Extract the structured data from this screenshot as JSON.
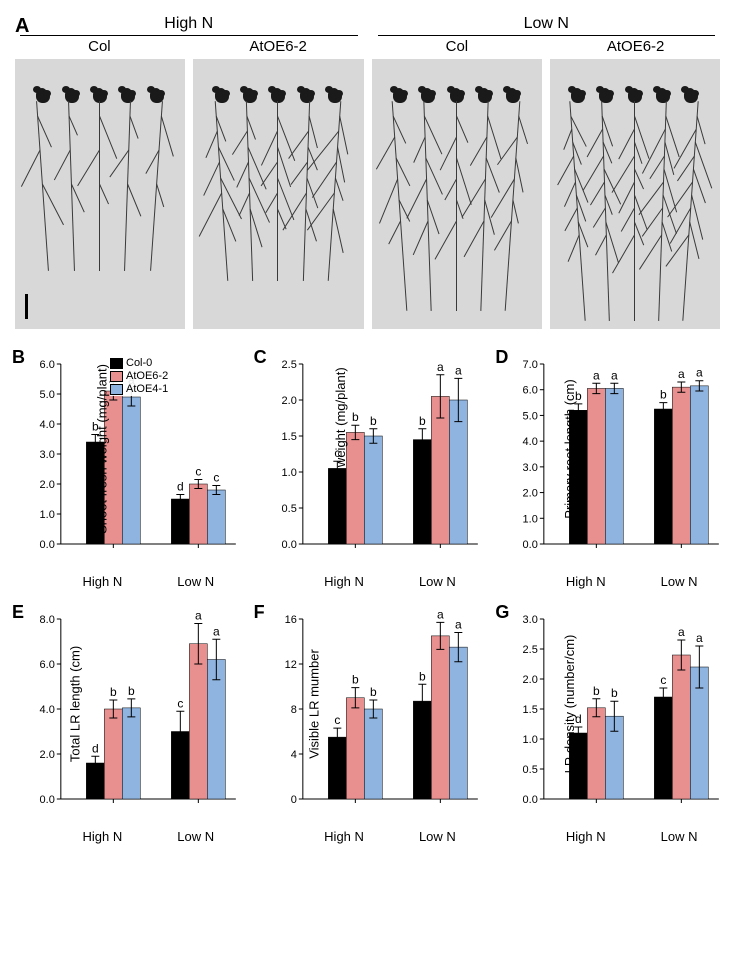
{
  "panelA": {
    "label": "A",
    "conditions": [
      "High N",
      "Low N"
    ],
    "genotypes": [
      "Col",
      "AtOE6-2",
      "Col",
      "AtOE6-2"
    ]
  },
  "legend": {
    "items": [
      {
        "label": "Col-0",
        "color": "#000000"
      },
      {
        "label": "AtOE6-2",
        "color": "#e89090"
      },
      {
        "label": "AtOE4-1",
        "color": "#8fb4e0"
      }
    ]
  },
  "x_groups": [
    "High N",
    "Low N"
  ],
  "series_colors": [
    "#000000",
    "#e89090",
    "#8fb4e0"
  ],
  "charts": {
    "B": {
      "ylabel": "Shoot fresh weight (mg/plant)",
      "ymax": 6.0,
      "ytick": 1.0,
      "decimals": 1,
      "groups": [
        {
          "values": [
            3.4,
            5.1,
            4.9
          ],
          "errors": [
            0.25,
            0.3,
            0.3
          ],
          "letters": [
            "b",
            "a",
            "a"
          ]
        },
        {
          "values": [
            1.5,
            2.0,
            1.8
          ],
          "errors": [
            0.15,
            0.15,
            0.15
          ],
          "letters": [
            "d",
            "c",
            "c"
          ]
        }
      ]
    },
    "C": {
      "ylabel": "Root fresh weight (mg/plant)",
      "ymax": 2.5,
      "ytick": 0.5,
      "decimals": 1,
      "groups": [
        {
          "values": [
            1.05,
            1.55,
            1.5
          ],
          "errors": [
            0.1,
            0.1,
            0.1
          ],
          "letters": [
            "c",
            "b",
            "b"
          ]
        },
        {
          "values": [
            1.45,
            2.05,
            2.0
          ],
          "errors": [
            0.15,
            0.3,
            0.3
          ],
          "letters": [
            "b",
            "a",
            "a"
          ]
        }
      ]
    },
    "D": {
      "ylabel": "Primary root length (cm)",
      "ymax": 7.0,
      "ytick": 1.0,
      "decimals": 1,
      "groups": [
        {
          "values": [
            5.2,
            6.05,
            6.05
          ],
          "errors": [
            0.25,
            0.2,
            0.2
          ],
          "letters": [
            "b",
            "a",
            "a"
          ]
        },
        {
          "values": [
            5.25,
            6.1,
            6.15
          ],
          "errors": [
            0.25,
            0.2,
            0.2
          ],
          "letters": [
            "b",
            "a",
            "a"
          ]
        }
      ]
    },
    "E": {
      "ylabel": "Total LR length (cm)",
      "ymax": 8.0,
      "ytick": 2.0,
      "decimals": 1,
      "groups": [
        {
          "values": [
            1.6,
            4.0,
            4.05
          ],
          "errors": [
            0.3,
            0.4,
            0.4
          ],
          "letters": [
            "d",
            "b",
            "b"
          ]
        },
        {
          "values": [
            3.0,
            6.9,
            6.2
          ],
          "errors": [
            0.9,
            0.9,
            0.9
          ],
          "letters": [
            "c",
            "a",
            "a"
          ]
        }
      ]
    },
    "F": {
      "ylabel": "Visible LR mumber",
      "ymax": 16,
      "ytick": 4,
      "decimals": 0,
      "groups": [
        {
          "values": [
            5.5,
            9.0,
            8.0
          ],
          "errors": [
            0.8,
            0.9,
            0.8
          ],
          "letters": [
            "c",
            "b",
            "b"
          ]
        },
        {
          "values": [
            8.7,
            14.5,
            13.5
          ],
          "errors": [
            1.5,
            1.2,
            1.3
          ],
          "letters": [
            "b",
            "a",
            "a"
          ]
        }
      ]
    },
    "G": {
      "ylabel": "LR density (number/cm)",
      "ymax": 3.0,
      "ytick": 0.5,
      "decimals": 1,
      "groups": [
        {
          "values": [
            1.1,
            1.52,
            1.38
          ],
          "errors": [
            0.1,
            0.15,
            0.25
          ],
          "letters": [
            "d",
            "b",
            "b"
          ]
        },
        {
          "values": [
            1.7,
            2.4,
            2.2
          ],
          "errors": [
            0.15,
            0.25,
            0.35
          ],
          "letters": [
            "c",
            "a",
            "a"
          ]
        }
      ]
    }
  }
}
